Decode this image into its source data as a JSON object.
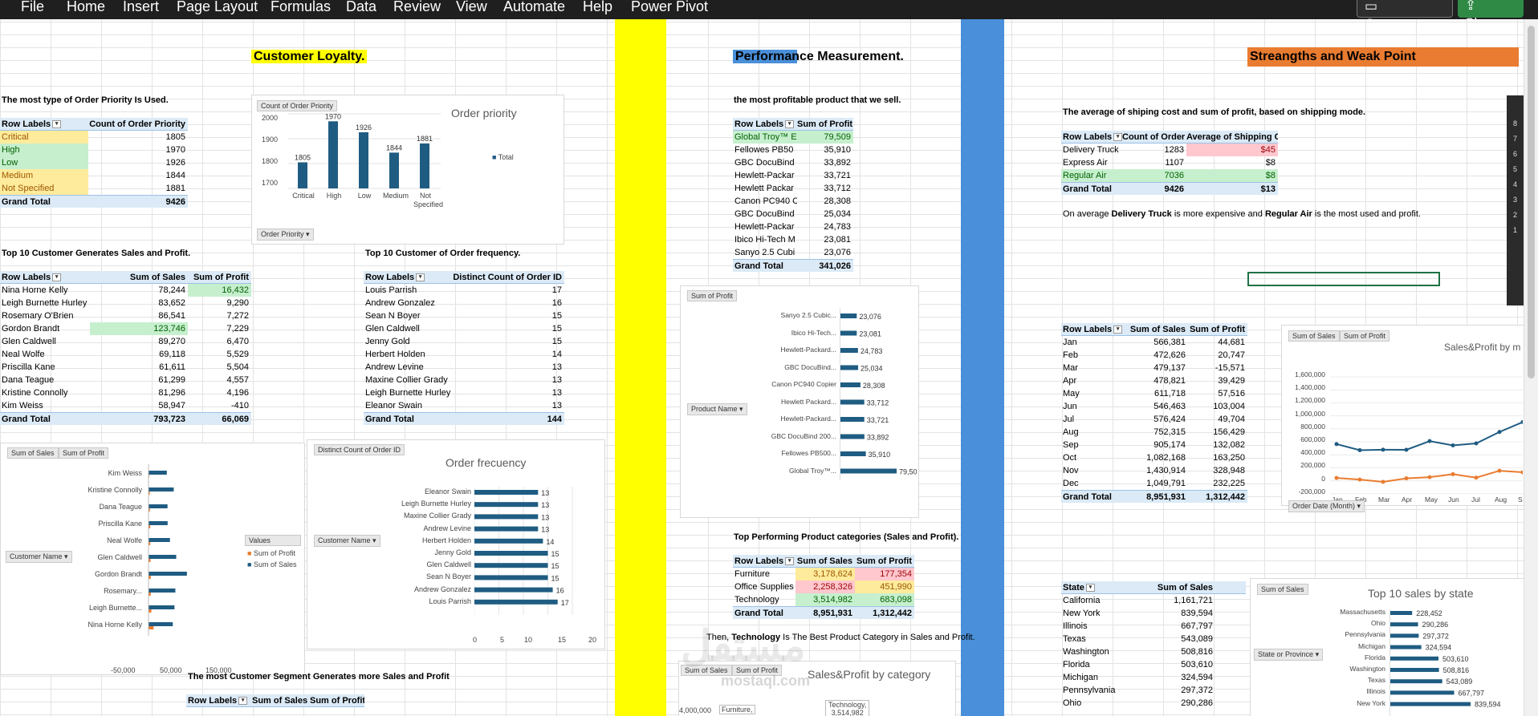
{
  "menubar": {
    "items": [
      "File",
      "Home",
      "Insert",
      "Page Layout",
      "Formulas",
      "Data",
      "Review",
      "View",
      "Automate",
      "Help",
      "Power Pivot"
    ],
    "comments": "Comments",
    "share": "Share"
  },
  "colors": {
    "yellow_band": "#ffff00",
    "blue_band": "#4a8fd9",
    "bar": "#1f5c82",
    "orange": "#e97c30",
    "green_fill": "#c6efce",
    "red_fill": "#ffc7ce",
    "yellow_fill": "#ffeb9c",
    "orange_band": "#e97c30"
  },
  "sections": {
    "loyalty": "Customer Loyalty.",
    "performance": "Performance Measurement.",
    "strengths": "Streangths and Weak Point"
  },
  "order_priority": {
    "title": "The most type of Order Priority Is Used.",
    "headers": [
      "Row Labels",
      "Count of Order Priority"
    ],
    "rows": [
      [
        "Critical",
        "1805"
      ],
      [
        "High",
        "1970"
      ],
      [
        "Low",
        "1926"
      ],
      [
        "Medium",
        "1844"
      ],
      [
        "Not Specified",
        "1881"
      ]
    ],
    "total": [
      "Grand Total",
      "9426"
    ],
    "chart": {
      "field": "Count of Order Priority",
      "title": "Order priority",
      "legend": "Total",
      "axis_button": "Order Priority",
      "yticks": [
        "2000",
        "1900",
        "1800",
        "1700"
      ]
    }
  },
  "top_customers_sales": {
    "title": "Top 10 Customer Generates Sales and Profit.",
    "headers": [
      "Row Labels",
      "Sum of Sales",
      "Sum of Profit"
    ],
    "rows": [
      [
        "Nina Horne Kelly",
        "78,244",
        "16,432"
      ],
      [
        "Leigh Burnette Hurley",
        "83,652",
        "9,290"
      ],
      [
        "Rosemary O'Brien",
        "86,541",
        "7,272"
      ],
      [
        "Gordon Brandt",
        "123,746",
        "7,229"
      ],
      [
        "Glen Caldwell",
        "89,270",
        "6,470"
      ],
      [
        "Neal Wolfe",
        "69,118",
        "5,529"
      ],
      [
        "Priscilla Kane",
        "61,611",
        "5,504"
      ],
      [
        "Dana Teague",
        "61,299",
        "4,557"
      ],
      [
        "Kristine Connolly",
        "81,296",
        "4,196"
      ],
      [
        "Kim Weiss",
        "58,947",
        "-410"
      ]
    ],
    "total": [
      "Grand Total",
      "793,723",
      "66,069"
    ],
    "chart": {
      "fields": [
        "Sum of Sales",
        "Sum of Profit"
      ],
      "axis_button": "Customer Name",
      "legend_title": "Values",
      "legend": [
        "Sum of Profit",
        "Sum of Sales"
      ],
      "labels": [
        "Kim Weiss",
        "Kristine Connolly",
        "Dana Teague",
        "Priscilla Kane",
        "Neal Wolfe",
        "Glen Caldwell",
        "Gordon Brandt",
        "Rosemary...",
        "Leigh Burnette...",
        "Nina Horne Kelly"
      ],
      "xticks": [
        "-50,000",
        "50,000",
        "150,000"
      ]
    }
  },
  "top_customers_freq": {
    "title": "Top 10 Customer of Order frequency.",
    "headers": [
      "Row Labels",
      "Distinct Count of Order ID"
    ],
    "rows": [
      [
        "Louis Parrish",
        "17"
      ],
      [
        "Andrew Gonzalez",
        "16"
      ],
      [
        "Sean N Boyer",
        "15"
      ],
      [
        "Glen Caldwell",
        "15"
      ],
      [
        "Jenny Gold",
        "15"
      ],
      [
        "Herbert Holden",
        "14"
      ],
      [
        "Andrew Levine",
        "13"
      ],
      [
        "Maxine Collier Grady",
        "13"
      ],
      [
        "Leigh Burnette Hurley",
        "13"
      ],
      [
        "Eleanor Swain",
        "13"
      ]
    ],
    "total": [
      "Grand Total",
      "144"
    ],
    "chart": {
      "field": "Distinct Count of Order ID",
      "title": "Order frecuency",
      "axis_button": "Customer Name",
      "xticks": [
        "0",
        "5",
        "10",
        "15",
        "20"
      ]
    }
  },
  "segment": {
    "title": "The most Customer Segment Generates more Sales and Profit",
    "headers": [
      "Row Labels",
      "Sum of Sales",
      "Sum of Profit"
    ]
  },
  "profitable_products": {
    "title": "the most profitable product that we sell.",
    "headers": [
      "Row Labels",
      "Sum of Profit"
    ],
    "rows": [
      [
        "Global Troy™ Ex",
        "79,509"
      ],
      [
        "Fellowes PB50",
        "35,910"
      ],
      [
        "GBC DocuBind",
        "33,892"
      ],
      [
        "Hewlett-Packar",
        "33,721"
      ],
      [
        "Hewlett Packar",
        "33,712"
      ],
      [
        "Canon PC940 C",
        "28,308"
      ],
      [
        "GBC DocuBind",
        "25,034"
      ],
      [
        "Hewlett-Packar",
        "24,783"
      ],
      [
        "Ibico Hi-Tech M",
        "23,081"
      ],
      [
        "Sanyo 2.5 Cubi",
        "23,076"
      ]
    ],
    "total": [
      "Grand Total",
      "341,026"
    ],
    "chart": {
      "field": "Sum of Profit",
      "axis_button": "Product Name",
      "labels": [
        "Sanyo 2.5 Cubic...",
        "Ibico Hi-Tech...",
        "Hewlett-Packard...",
        "GBC DocuBind...",
        "Canon PC940 Copier",
        "Hewlett Packard...",
        "Hewlett-Packard...",
        "GBC DocuBind 200...",
        "Fellowes PB500...",
        "Global Troy™..."
      ]
    }
  },
  "categories": {
    "title": "Top Performing Product categories (Sales and Profit).",
    "headers": [
      "Row Labels",
      "Sum of Sales",
      "Sum of Profit"
    ],
    "rows": [
      [
        "Furniture",
        "3,178,624",
        "177,354"
      ],
      [
        "Office Supplies",
        "2,258,326",
        "451,990"
      ],
      [
        "Technology",
        "3,514,982",
        "683,098"
      ]
    ],
    "total": [
      "Grand Total",
      "8,951,931",
      "1,312,442"
    ],
    "note_prefix": "Then, ",
    "note_bold": "Technology",
    "note_suffix": " Is The Best Product Category in Sales and Profit.",
    "chart": {
      "fields": [
        "Sum of Sales",
        "Sum of Profit"
      ],
      "title": "Sales&Profit by category",
      "ytick": "4,000,000",
      "tag1": "Furniture,",
      "tag2a": "Technology,",
      "tag2b": "3,514,982"
    }
  },
  "shipping": {
    "title": "The average of shiping cost and sum of profit, based on shipping mode.",
    "headers": [
      "Row Labels",
      "Count of Order I",
      "Average of Shipping Cost"
    ],
    "rows": [
      [
        "Delivery Truck",
        "1283",
        "$45"
      ],
      [
        "Express Air",
        "1107",
        "$8"
      ],
      [
        "Regular Air",
        "7036",
        "$8"
      ]
    ],
    "total": [
      "Grand Total",
      "9426",
      "$13"
    ],
    "note_a": "On average ",
    "note_b": "Delivery Truck",
    "note_c": " is more expensive and ",
    "note_d": "Regular Air",
    "note_e": " is the most used and profit."
  },
  "monthly": {
    "headers": [
      "Row Labels",
      "Sum of Sales",
      "Sum of Profit"
    ],
    "rows": [
      [
        "Jan",
        "566,381",
        "44,681"
      ],
      [
        "Feb",
        "472,626",
        "20,747"
      ],
      [
        "Mar",
        "479,137",
        "-15,571"
      ],
      [
        "Apr",
        "478,821",
        "39,429"
      ],
      [
        "May",
        "611,718",
        "57,516"
      ],
      [
        "Jun",
        "546,463",
        "103,004"
      ],
      [
        "Jul",
        "576,424",
        "49,704"
      ],
      [
        "Aug",
        "752,315",
        "156,429"
      ],
      [
        "Sep",
        "905,174",
        "132,082"
      ],
      [
        "Oct",
        "1,082,168",
        "163,250"
      ],
      [
        "Nov",
        "1,430,914",
        "328,948"
      ],
      [
        "Dec",
        "1,049,791",
        "232,225"
      ]
    ],
    "total": [
      "Grand Total",
      "8,951,931",
      "1,312,442"
    ],
    "chart": {
      "fields": [
        "Sum of Sales",
        "Sum of Profit"
      ],
      "title": "Sales&Profit by m",
      "axis_button": "Order Date (Month)",
      "yticks": [
        "1,600,000",
        "1,400,000",
        "1,200,000",
        "1,000,000",
        "800,000",
        "600,000",
        "400,000",
        "200,000",
        "0",
        "-200,000"
      ],
      "xticks": [
        "Jan",
        "Feb",
        "Mar",
        "Apr",
        "May",
        "Jun",
        "Jul",
        "Aug",
        "S"
      ]
    }
  },
  "states": {
    "headers": [
      "State",
      "Sum of Sales"
    ],
    "rows": [
      [
        "California",
        "1,161,721"
      ],
      [
        "New York",
        "839,594"
      ],
      [
        "Illinois",
        "667,797"
      ],
      [
        "Texas",
        "543,089"
      ],
      [
        "Washington",
        "508,816"
      ],
      [
        "Florida",
        "503,610"
      ],
      [
        "Michigan",
        "324,594"
      ],
      [
        "Pennsylvania",
        "297,372"
      ],
      [
        "Ohio",
        "290,286"
      ]
    ],
    "chart": {
      "field": "Sum of Sales",
      "title": "Top 10 sales by state",
      "axis_button": "State or  Province",
      "labels": [
        "Massachusetts",
        "Ohio",
        "Pennsylvania",
        "Michigan",
        "Florida",
        "Washington",
        "Texas",
        "Illinois",
        "New York"
      ]
    }
  },
  "side_numbers": [
    "8",
    "7",
    "6",
    "5",
    "4",
    "3",
    "2",
    "1"
  ],
  "watermark": {
    "ar": "مستقل",
    "en": "mostaql.com"
  },
  "chart_data": [
    {
      "type": "bar",
      "title": "Order priority",
      "categories": [
        "Critical",
        "High",
        "Low",
        "Medium",
        "Not Specified"
      ],
      "values": [
        1805,
        1970,
        1926,
        1844,
        1881
      ],
      "ylim": [
        1700,
        2000
      ],
      "series": [
        {
          "name": "Total",
          "values": [
            1805,
            1970,
            1926,
            1844,
            1881
          ]
        }
      ]
    },
    {
      "type": "bar",
      "title": "",
      "categories": [
        "Kim Weiss",
        "Kristine Connolly",
        "Dana Teague",
        "Priscilla Kane",
        "Neal Wolfe",
        "Glen Caldwell",
        "Gordon Brandt",
        "Rosemary...",
        "Leigh Burnette...",
        "Nina Horne Kelly"
      ],
      "xlim": [
        -50000,
        150000
      ],
      "series": [
        {
          "name": "Sum of Profit",
          "values": [
            -410,
            4196,
            4557,
            5504,
            5529,
            6470,
            7229,
            7272,
            9290,
            16432
          ]
        },
        {
          "name": "Sum of Sales",
          "values": [
            58947,
            81296,
            61299,
            61611,
            69118,
            89270,
            123746,
            86541,
            83652,
            78244
          ]
        }
      ]
    },
    {
      "type": "bar",
      "title": "Order frecuency",
      "categories": [
        "Eleanor Swain",
        "Leigh Burnette Hurley",
        "Maxine Collier Grady",
        "Andrew Levine",
        "Herbert Holden",
        "Jenny Gold",
        "Glen Caldwell",
        "Sean N Boyer",
        "Andrew Gonzalez",
        "Louis Parrish"
      ],
      "values": [
        13,
        13,
        13,
        13,
        14,
        15,
        15,
        15,
        16,
        17
      ],
      "xlim": [
        0,
        20
      ]
    },
    {
      "type": "bar",
      "title": "",
      "categories": [
        "Sanyo 2.5 Cubic...",
        "Ibico Hi-Tech...",
        "Hewlett-Packard...",
        "GBC DocuBind...",
        "Canon PC940 Copier",
        "Hewlett Packard...",
        "Hewlett-Packard...",
        "GBC DocuBind 200...",
        "Fellowes PB500...",
        "Global Troy™..."
      ],
      "values": [
        23076,
        23081,
        24783,
        25034,
        28308,
        33712,
        33721,
        33892,
        35910,
        79509
      ]
    },
    {
      "type": "line",
      "title": "Sales&Profit by m",
      "x": [
        "Jan",
        "Feb",
        "Mar",
        "Apr",
        "May",
        "Jun",
        "Jul",
        "Aug",
        "Sep",
        "Oct",
        "Nov",
        "Dec"
      ],
      "ylim": [
        -200000,
        1600000
      ],
      "series": [
        {
          "name": "Sum of Sales",
          "values": [
            566381,
            472626,
            479137,
            478821,
            611718,
            546463,
            576424,
            752315,
            905174,
            1082168,
            1430914,
            1049791
          ]
        },
        {
          "name": "Sum of Profit",
          "values": [
            44681,
            20747,
            -15571,
            39429,
            57516,
            103004,
            49704,
            156429,
            132082,
            163250,
            328948,
            232225
          ]
        }
      ]
    },
    {
      "type": "bar",
      "title": "Top 10 sales by state",
      "categories": [
        "Massachusetts",
        "Ohio",
        "Pennsylvania",
        "Michigan",
        "Florida",
        "Washington",
        "Texas",
        "Illinois",
        "New York"
      ],
      "values": [
        228452,
        290286,
        297372,
        324594,
        503610,
        508816,
        543089,
        667797,
        839594
      ]
    }
  ]
}
